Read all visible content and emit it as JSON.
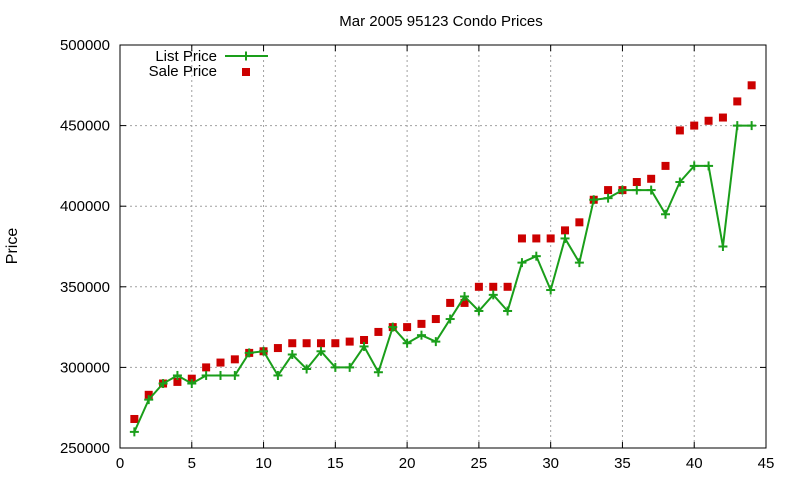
{
  "chart_data": {
    "type": "line",
    "title": "Mar 2005 95123 Condo Prices",
    "xlabel": "",
    "ylabel": "Price",
    "xlim": [
      0,
      45
    ],
    "ylim": [
      250000,
      500000
    ],
    "xticks": [
      0,
      5,
      10,
      15,
      20,
      25,
      30,
      35,
      40,
      45
    ],
    "yticks": [
      250000,
      300000,
      350000,
      400000,
      450000,
      500000
    ],
    "grid": true,
    "legend_position": "top-left",
    "series": [
      {
        "name": "List Price",
        "style": "line-with-plus-markers",
        "color": "#1a9e1a",
        "x": [
          1,
          2,
          3,
          4,
          5,
          6,
          7,
          8,
          9,
          10,
          11,
          12,
          13,
          14,
          15,
          16,
          17,
          18,
          19,
          20,
          21,
          22,
          23,
          24,
          25,
          26,
          27,
          28,
          29,
          30,
          31,
          32,
          33,
          34,
          35,
          36,
          37,
          38,
          39,
          40,
          41,
          42,
          43,
          44
        ],
        "y": [
          260000,
          280000,
          290000,
          295000,
          290000,
          295000,
          295000,
          295000,
          309000,
          310000,
          295000,
          308000,
          299000,
          310000,
          300000,
          300000,
          313000,
          297000,
          325000,
          315000,
          320000,
          316000,
          330000,
          344000,
          335000,
          345000,
          335000,
          365000,
          369000,
          348000,
          380000,
          365000,
          404000,
          405000,
          410000,
          410000,
          410000,
          395000,
          415000,
          425000,
          425000,
          375000,
          450000,
          450000
        ]
      },
      {
        "name": "Sale Price",
        "style": "square-markers",
        "color": "#cc0000",
        "x": [
          1,
          2,
          3,
          4,
          5,
          6,
          7,
          8,
          9,
          10,
          11,
          12,
          13,
          14,
          15,
          16,
          17,
          18,
          19,
          20,
          21,
          22,
          23,
          24,
          25,
          26,
          27,
          28,
          29,
          30,
          31,
          32,
          33,
          34,
          35,
          36,
          37,
          38,
          39,
          40,
          41,
          42,
          43,
          44
        ],
        "y": [
          268000,
          283000,
          290000,
          291000,
          293000,
          300000,
          303000,
          305000,
          309000,
          310000,
          312000,
          315000,
          315000,
          315000,
          315000,
          316000,
          317000,
          322000,
          325000,
          325000,
          327000,
          330000,
          340000,
          340000,
          350000,
          350000,
          350000,
          380000,
          380000,
          380000,
          385000,
          390000,
          404000,
          410000,
          410000,
          415000,
          417000,
          425000,
          447000,
          450000,
          453000,
          455000,
          465000,
          475000
        ]
      }
    ]
  }
}
